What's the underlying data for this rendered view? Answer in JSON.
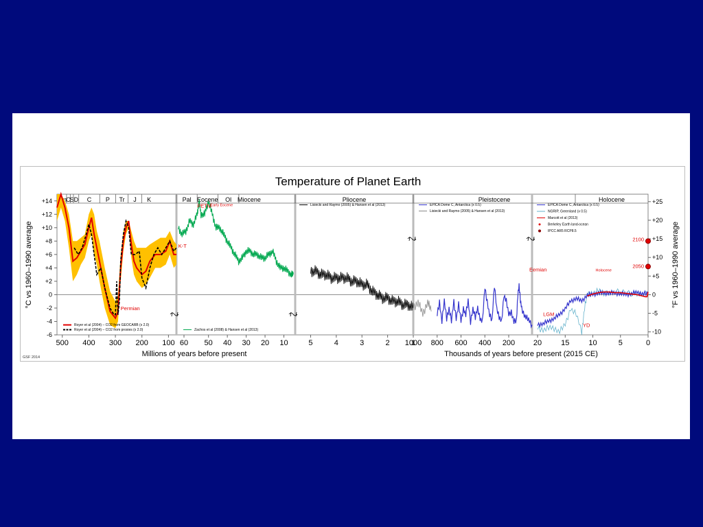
{
  "chart_data": {
    "type": "line",
    "title": "Temperature of Planet Earth",
    "credit": "GSF 2014",
    "left_axis_label": "°C vs 1960–1990 average",
    "right_axis_label": "°F vs 1960–1990 average",
    "left_ticks": [
      "+14",
      "+12",
      "+10",
      "+8",
      "+6",
      "+4",
      "+2",
      "0",
      "-2",
      "-4",
      "-6"
    ],
    "right_ticks": [
      "+25",
      "+20",
      "+15",
      "+10",
      "+5",
      "0",
      "-5",
      "-10"
    ],
    "ylim_c": [
      -6,
      15
    ],
    "panels": [
      {
        "id": "p1",
        "xlabel": "",
        "ticks": [
          "500",
          "400",
          "300",
          "200",
          "100"
        ],
        "periods": [
          "Cm",
          "O",
          "S",
          "D",
          "C",
          "P",
          "Tr",
          "J",
          "K"
        ],
        "annotations": [
          {
            "text": "Permian",
            "x": 280,
            "y": -2.3
          }
        ],
        "legend": [
          {
            "text": "Royer et al (2004) – CO2 from GEOCARB (x 2.0)",
            "color": "#e00000",
            "style": "solid"
          },
          {
            "text": "Royer et al (2004) – CO2 from proxies (x 2.0)",
            "color": "#000000",
            "style": "dashed"
          }
        ],
        "series": [
          {
            "name": "Royer et al (2004) – CO2 from GEOCARB (x 2.0)",
            "color": "#e00000",
            "x": [
              520,
              505,
              490,
              475,
              460,
              445,
              430,
              415,
              400,
              390,
              380,
              370,
              360,
              340,
              320,
              300,
              290,
              280,
              270,
              260,
              250,
              240,
              230,
              220,
              200,
              185,
              170,
              150,
              130,
              110,
              95,
              80,
              70
            ],
            "y": [
              13,
              15,
              13,
              10,
              5,
              5.5,
              6.5,
              7.5,
              10,
              11.5,
              9,
              7,
              5,
              1,
              -2.5,
              -3.5,
              -2.5,
              4,
              8,
              10,
              11,
              7.5,
              5,
              4,
              3,
              3.5,
              5,
              6,
              6,
              6.5,
              8,
              6,
              6
            ]
          },
          {
            "name": "Royer et al (2004) – CO2 from proxies (x 2.0)",
            "color": "#000000",
            "dash": true,
            "x": [
              455,
              440,
              425,
              410,
              400,
              390,
              380,
              370,
              355,
              340,
              320,
              305,
              300,
              295,
              290,
              285,
              280,
              270,
              260,
              250,
              240,
              225,
              210,
              200,
              185,
              170,
              155,
              140,
              125,
              110,
              95,
              80,
              70
            ],
            "y": [
              7,
              6,
              7,
              9,
              10.5,
              9,
              6,
              3,
              4,
              1,
              -2,
              -3,
              -3,
              2,
              -3,
              -1,
              5,
              9,
              11,
              10,
              6,
              6,
              6.5,
              2.5,
              1,
              4,
              6,
              7,
              6,
              7,
              8,
              6.5,
              7
            ]
          }
        ],
        "band": {
          "name": "",
          "color": "#ffc000",
          "x": [
            520,
            505,
            490,
            475,
            460,
            445,
            430,
            415,
            400,
            390,
            380,
            370,
            360,
            340,
            320,
            300,
            290,
            280,
            270,
            260,
            250,
            240,
            230,
            220,
            200,
            185,
            170,
            150,
            130,
            110,
            95,
            80,
            70
          ],
          "upper": [
            15,
            15,
            14,
            12,
            8,
            8,
            8.5,
            9,
            12,
            13,
            12,
            9.5,
            8,
            4,
            0.5,
            -1,
            0,
            6,
            9.5,
            11,
            11,
            9.5,
            8,
            7,
            7,
            7,
            7.5,
            8,
            8.5,
            8.5,
            9.5,
            8,
            7.5
          ],
          "lower": [
            11,
            13,
            11,
            7,
            2,
            3,
            4.5,
            5.5,
            8,
            9,
            6,
            4.5,
            2,
            -2,
            -4.5,
            -5,
            -4,
            2,
            6.5,
            9,
            10,
            5.5,
            3,
            2,
            1,
            1.5,
            2.5,
            4,
            4,
            4.5,
            6,
            4,
            4.5
          ]
        }
      },
      {
        "id": "p2",
        "xlabel": "Millions of years before present",
        "ticks": [
          "60",
          "50",
          "40",
          "30",
          "20",
          "10"
        ],
        "periods": [
          "Pal",
          "Eocene",
          "Ol",
          "Miocene"
        ],
        "annotations": [
          {
            "text": "PETM",
            "x": 56,
            "y": 13
          },
          {
            "text": "Early Eocene",
            "x": 49,
            "y": 13.2
          },
          {
            "text": "K-T",
            "x": 66,
            "y": 7
          }
        ],
        "legend": [
          {
            "text": "Zachos et al (2008) & Hansen et al (2013)",
            "color": "#00a84f",
            "style": "solid"
          }
        ],
        "series": [
          {
            "name": "Zachos et al (2008) & Hansen et al (2013)",
            "color": "#00a84f",
            "x": [
              66,
              64,
              62,
              60,
              58,
              56,
              55,
              54,
              52,
              50,
              48,
              46,
              44,
              42,
              40,
              38,
              36,
              34,
              32,
              30,
              28,
              26,
              24,
              22,
              20,
              18,
              16,
              14,
              12,
              10,
              8,
              6,
              5
            ],
            "y": [
              10,
              9,
              9.5,
              11,
              10.5,
              12,
              14,
              12,
              12,
              14,
              12,
              10,
              10,
              9,
              8,
              7,
              6,
              5,
              5.5,
              6.5,
              6.5,
              6,
              6,
              5.5,
              5.5,
              6,
              6.5,
              5,
              4,
              4,
              3.5,
              3,
              3
            ]
          }
        ]
      },
      {
        "id": "p3",
        "xlabel": "",
        "ticks": [
          "5",
          "4",
          "3",
          "2",
          "1"
        ],
        "periods": [
          "Pliocene"
        ],
        "annotations": [],
        "legend": [
          {
            "text": "Lisiecki and Raymo (2005) & Hansen et al (2013)",
            "color": "#000000",
            "style": "solid"
          }
        ],
        "series": [
          {
            "name": "Lisiecki and Raymo (2005) & Hansen et al (2013)",
            "color": "#000000",
            "x": [
              5,
              4.8,
              4.6,
              4.4,
              4.2,
              4,
              3.8,
              3.6,
              3.4,
              3.2,
              3,
              2.8,
              2.6,
              2.4,
              2.2,
              2,
              1.8,
              1.6,
              1.4,
              1.2,
              1
            ],
            "y": [
              3.5,
              3.5,
              3,
              3,
              2.5,
              2.5,
              2.5,
              2.5,
              2,
              2,
              1.5,
              1.5,
              0.5,
              0,
              -0.5,
              -0.5,
              -1,
              -1,
              -1.5,
              -1.5,
              -2
            ]
          }
        ]
      },
      {
        "id": "p4",
        "xlabel": "Thousands of years before present (2015 CE)",
        "ticks": [
          "1000",
          "800",
          "600",
          "400",
          "200"
        ],
        "periods": [
          "Pleistocene"
        ],
        "annotations": [],
        "legend": [
          {
            "text": "EPICA Dome C, Antarctica (x 0.5)",
            "color": "#3333cc",
            "style": "solid"
          },
          {
            "text": "Lisiecki and Raymo (2005) & Hansen et al (2013)",
            "color": "#888888",
            "style": "solid"
          }
        ],
        "series": [
          {
            "name": "Lisiecki and Raymo (2005) & Hansen et al (2013)",
            "color": "#888888",
            "x": [
              1000,
              960,
              920,
              880,
              850
            ],
            "y": [
              -2,
              -1,
              -3,
              -1,
              -2.5
            ]
          },
          {
            "name": "EPICA Dome C, Antarctica (x 0.5)",
            "color": "#3333cc",
            "x": [
              800,
              780,
              760,
              740,
              720,
              700,
              680,
              660,
              640,
              620,
              600,
              580,
              560,
              540,
              520,
              500,
              480,
              460,
              440,
              420,
              400,
              380,
              360,
              340,
              320,
              300,
              280,
              260,
              240,
              220,
              200,
              180,
              160,
              140,
              130,
              120,
              110,
              100,
              80,
              60,
              40,
              20
            ],
            "y": [
              -3,
              -1,
              -4,
              -1,
              -3.5,
              -2,
              -4,
              -1,
              -3.5,
              -1.5,
              -4,
              -2,
              -3,
              -1,
              -4,
              -2,
              -3.5,
              -2,
              -3.5,
              -4,
              1,
              -1,
              -3,
              -4,
              1.5,
              -2,
              -3.5,
              -4,
              0,
              -1,
              -3,
              -2.5,
              -4,
              -4,
              0,
              1.5,
              -1,
              -2,
              -3,
              -3.5,
              -4,
              -4.5
            ]
          }
        ]
      },
      {
        "id": "p5",
        "xlabel": "",
        "ticks": [
          "20",
          "15",
          "10",
          "5",
          "0"
        ],
        "periods": [
          "Holocene"
        ],
        "annotations": [
          {
            "text": "Eemian",
            "x": 21.5,
            "y": 3.5
          },
          {
            "text": "LGM",
            "x": 19,
            "y": -3.2
          },
          {
            "text": "YD",
            "x": 11.8,
            "y": -4.8
          },
          {
            "text": "Holocene",
            "x": 9.5,
            "y": 3.5
          },
          {
            "text": "2100",
            "x": 0.4,
            "y": 8
          },
          {
            "text": "2050",
            "x": 0.4,
            "y": 4
          }
        ],
        "legend": [
          {
            "text": "EPICA Dome C, Antarctica (x 0.5)",
            "color": "#3333cc",
            "style": "solid"
          },
          {
            "text": "NGRIP, Greenland (x 0.5)",
            "color": "#66b3cc",
            "style": "solid"
          },
          {
            "text": "Marcott et al (2013)",
            "color": "#e00000",
            "style": "solid"
          },
          {
            "text": "Berkeley Earth land-ocean",
            "color": "#e00000",
            "style": "dot"
          },
          {
            "text": "IPCC AR5 RCP8.5",
            "color": "#8b0000",
            "style": "marker"
          }
        ],
        "series": [
          {
            "name": "EPICA Dome C, Antarctica (x 0.5)",
            "color": "#3333cc",
            "x": [
              20,
              19,
              18,
              17,
              16,
              15,
              14,
              13,
              12,
              11,
              10,
              9,
              8,
              7,
              6,
              5,
              4,
              3,
              2,
              1,
              0
            ],
            "y": [
              -4.5,
              -4.3,
              -4,
              -3.5,
              -3,
              -2,
              -1,
              -0.5,
              -1,
              0,
              0,
              0.3,
              0.2,
              0.3,
              0.2,
              0.2,
              0,
              0.2,
              0.3,
              0.2,
              0.1
            ]
          },
          {
            "name": "NGRIP, Greenland (x 0.5)",
            "color": "#66b3cc",
            "x": [
              20,
              19,
              18,
              17,
              16,
              15,
              14,
              13,
              12,
              11.5,
              11,
              10,
              9,
              8,
              6,
              4,
              2,
              0
            ],
            "y": [
              -5,
              -5.2,
              -5,
              -5,
              -5.5,
              -4.5,
              -2,
              -3,
              -5.5,
              -2,
              0,
              0.3,
              0.5,
              0.3,
              0.4,
              0.3,
              0.2,
              0
            ]
          },
          {
            "name": "Marcott et al (2013)",
            "color": "#e00000",
            "x": [
              11,
              10,
              9,
              8,
              7,
              6,
              5,
              4,
              3,
              2,
              1,
              0.5,
              0.2,
              0
            ],
            "y": [
              -0.2,
              0.1,
              0.3,
              0.4,
              0.4,
              0.3,
              0.3,
              0.2,
              0.1,
              0,
              -0.2,
              -0.3,
              -0.3,
              0.4
            ]
          },
          {
            "name": "IPCC AR5 RCP8.5",
            "color": "#8b0000",
            "marker": true,
            "x": [
              0.035,
              0.085
            ],
            "y": [
              8,
              4.2
            ]
          }
        ]
      }
    ]
  }
}
